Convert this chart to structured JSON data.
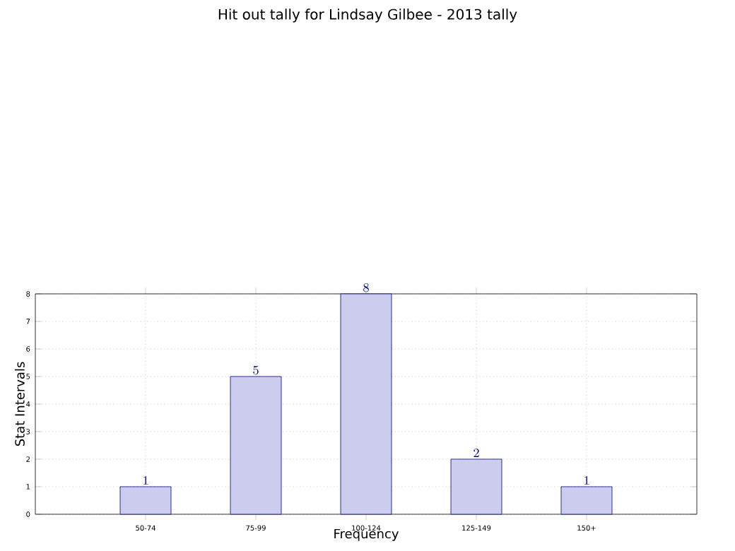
{
  "chart_data": {
    "type": "bar",
    "title": "Hit out tally for Lindsay Gilbee - 2013 tally",
    "xlabel": "Frequency",
    "ylabel": "Stat Intervals",
    "categories": [
      "50-74",
      "75-99",
      "100-124",
      "125-149",
      "150+"
    ],
    "values": [
      1,
      5,
      8,
      2,
      1
    ],
    "color": "#ccccee",
    "ylim": [
      0,
      8
    ],
    "yticks": [
      0,
      1,
      2,
      3,
      4,
      5,
      6,
      7,
      8
    ],
    "grid": true,
    "data_labels": true
  }
}
